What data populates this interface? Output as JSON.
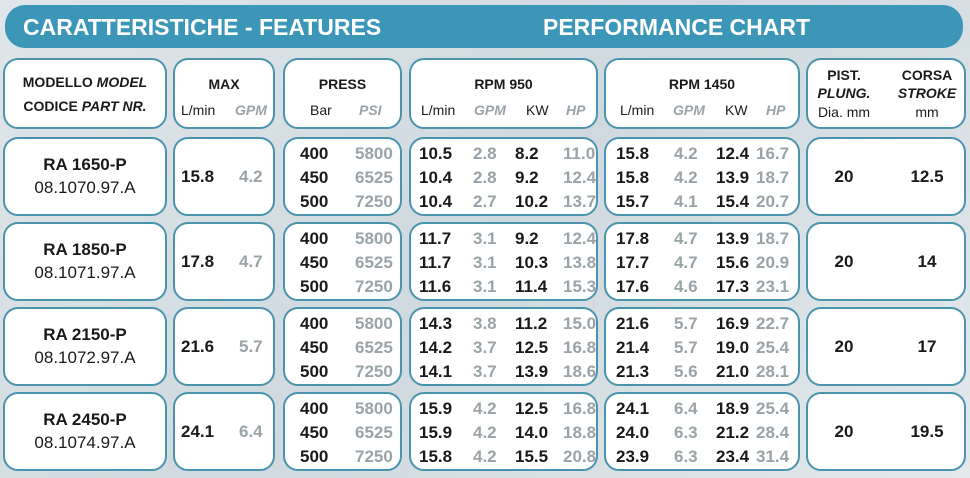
{
  "header": {
    "left": "CARATTERISTICHE - FEATURES",
    "right": "PERFORMANCE CHART"
  },
  "columns": {
    "model_l1": "MODELLO",
    "model_l1i": "MODEL",
    "model_l2": "CODICE",
    "model_l2i": "PART NR.",
    "max": "MAX",
    "max_lmin": "L/min",
    "max_gpm": "GPM",
    "press": "PRESS",
    "bar": "Bar",
    "psi": "PSI",
    "rpm950": "RPM 950",
    "rpm1450": "RPM 1450",
    "lmin": "L/min",
    "gpm": "GPM",
    "kw": "KW",
    "hp": "HP",
    "pist": "PIST.",
    "plung": "PLUNG.",
    "dia": "Dia. mm",
    "corsa": "CORSA",
    "stroke": "STROKE",
    "mm": "mm"
  },
  "rows": [
    {
      "model": "RA 1650-P",
      "code": "08.1070.97.A",
      "max_lmin": "15.8",
      "max_gpm": "4.2",
      "bar": [
        "400",
        "450",
        "500"
      ],
      "psi": [
        "5800",
        "6525",
        "7250"
      ],
      "r950": [
        [
          "10.5",
          "2.8",
          "8.2",
          "11.0"
        ],
        [
          "10.4",
          "2.8",
          "9.2",
          "12.4"
        ],
        [
          "10.4",
          "2.7",
          "10.2",
          "13.7"
        ]
      ],
      "r1450": [
        [
          "15.8",
          "4.2",
          "12.4",
          "16.7"
        ],
        [
          "15.8",
          "4.2",
          "13.9",
          "18.7"
        ],
        [
          "15.7",
          "4.1",
          "15.4",
          "20.7"
        ]
      ],
      "piston": "20",
      "stroke": "12.5"
    },
    {
      "model": "RA 1850-P",
      "code": "08.1071.97.A",
      "max_lmin": "17.8",
      "max_gpm": "4.7",
      "bar": [
        "400",
        "450",
        "500"
      ],
      "psi": [
        "5800",
        "6525",
        "7250"
      ],
      "r950": [
        [
          "11.7",
          "3.1",
          "9.2",
          "12.4"
        ],
        [
          "11.7",
          "3.1",
          "10.3",
          "13.8"
        ],
        [
          "11.6",
          "3.1",
          "11.4",
          "15.3"
        ]
      ],
      "r1450": [
        [
          "17.8",
          "4.7",
          "13.9",
          "18.7"
        ],
        [
          "17.7",
          "4.7",
          "15.6",
          "20.9"
        ],
        [
          "17.6",
          "4.6",
          "17.3",
          "23.1"
        ]
      ],
      "piston": "20",
      "stroke": "14"
    },
    {
      "model": "RA 2150-P",
      "code": "08.1072.97.A",
      "max_lmin": "21.6",
      "max_gpm": "5.7",
      "bar": [
        "400",
        "450",
        "500"
      ],
      "psi": [
        "5800",
        "6525",
        "7250"
      ],
      "r950": [
        [
          "14.3",
          "3.8",
          "11.2",
          "15.0"
        ],
        [
          "14.2",
          "3.7",
          "12.5",
          "16.8"
        ],
        [
          "14.1",
          "3.7",
          "13.9",
          "18.6"
        ]
      ],
      "r1450": [
        [
          "21.6",
          "5.7",
          "16.9",
          "22.7"
        ],
        [
          "21.4",
          "5.7",
          "19.0",
          "25.4"
        ],
        [
          "21.3",
          "5.6",
          "21.0",
          "28.1"
        ]
      ],
      "piston": "20",
      "stroke": "17"
    },
    {
      "model": "RA 2450-P",
      "code": "08.1074.97.A",
      "max_lmin": "24.1",
      "max_gpm": "6.4",
      "bar": [
        "400",
        "450",
        "500"
      ],
      "psi": [
        "5800",
        "6525",
        "7250"
      ],
      "r950": [
        [
          "15.9",
          "4.2",
          "12.5",
          "16.8"
        ],
        [
          "15.9",
          "4.2",
          "14.0",
          "18.8"
        ],
        [
          "15.8",
          "4.2",
          "15.5",
          "20.8"
        ]
      ],
      "r1450": [
        [
          "24.1",
          "6.4",
          "18.9",
          "25.4"
        ],
        [
          "24.0",
          "6.3",
          "21.2",
          "28.4"
        ],
        [
          "23.9",
          "6.3",
          "23.4",
          "31.4"
        ]
      ],
      "piston": "20",
      "stroke": "19.5"
    }
  ],
  "colors": {
    "accent": "#3b96b8",
    "border": "#4b94ad",
    "primary_text": "#1a1a1a",
    "secondary_text": "#9aa3a8"
  }
}
